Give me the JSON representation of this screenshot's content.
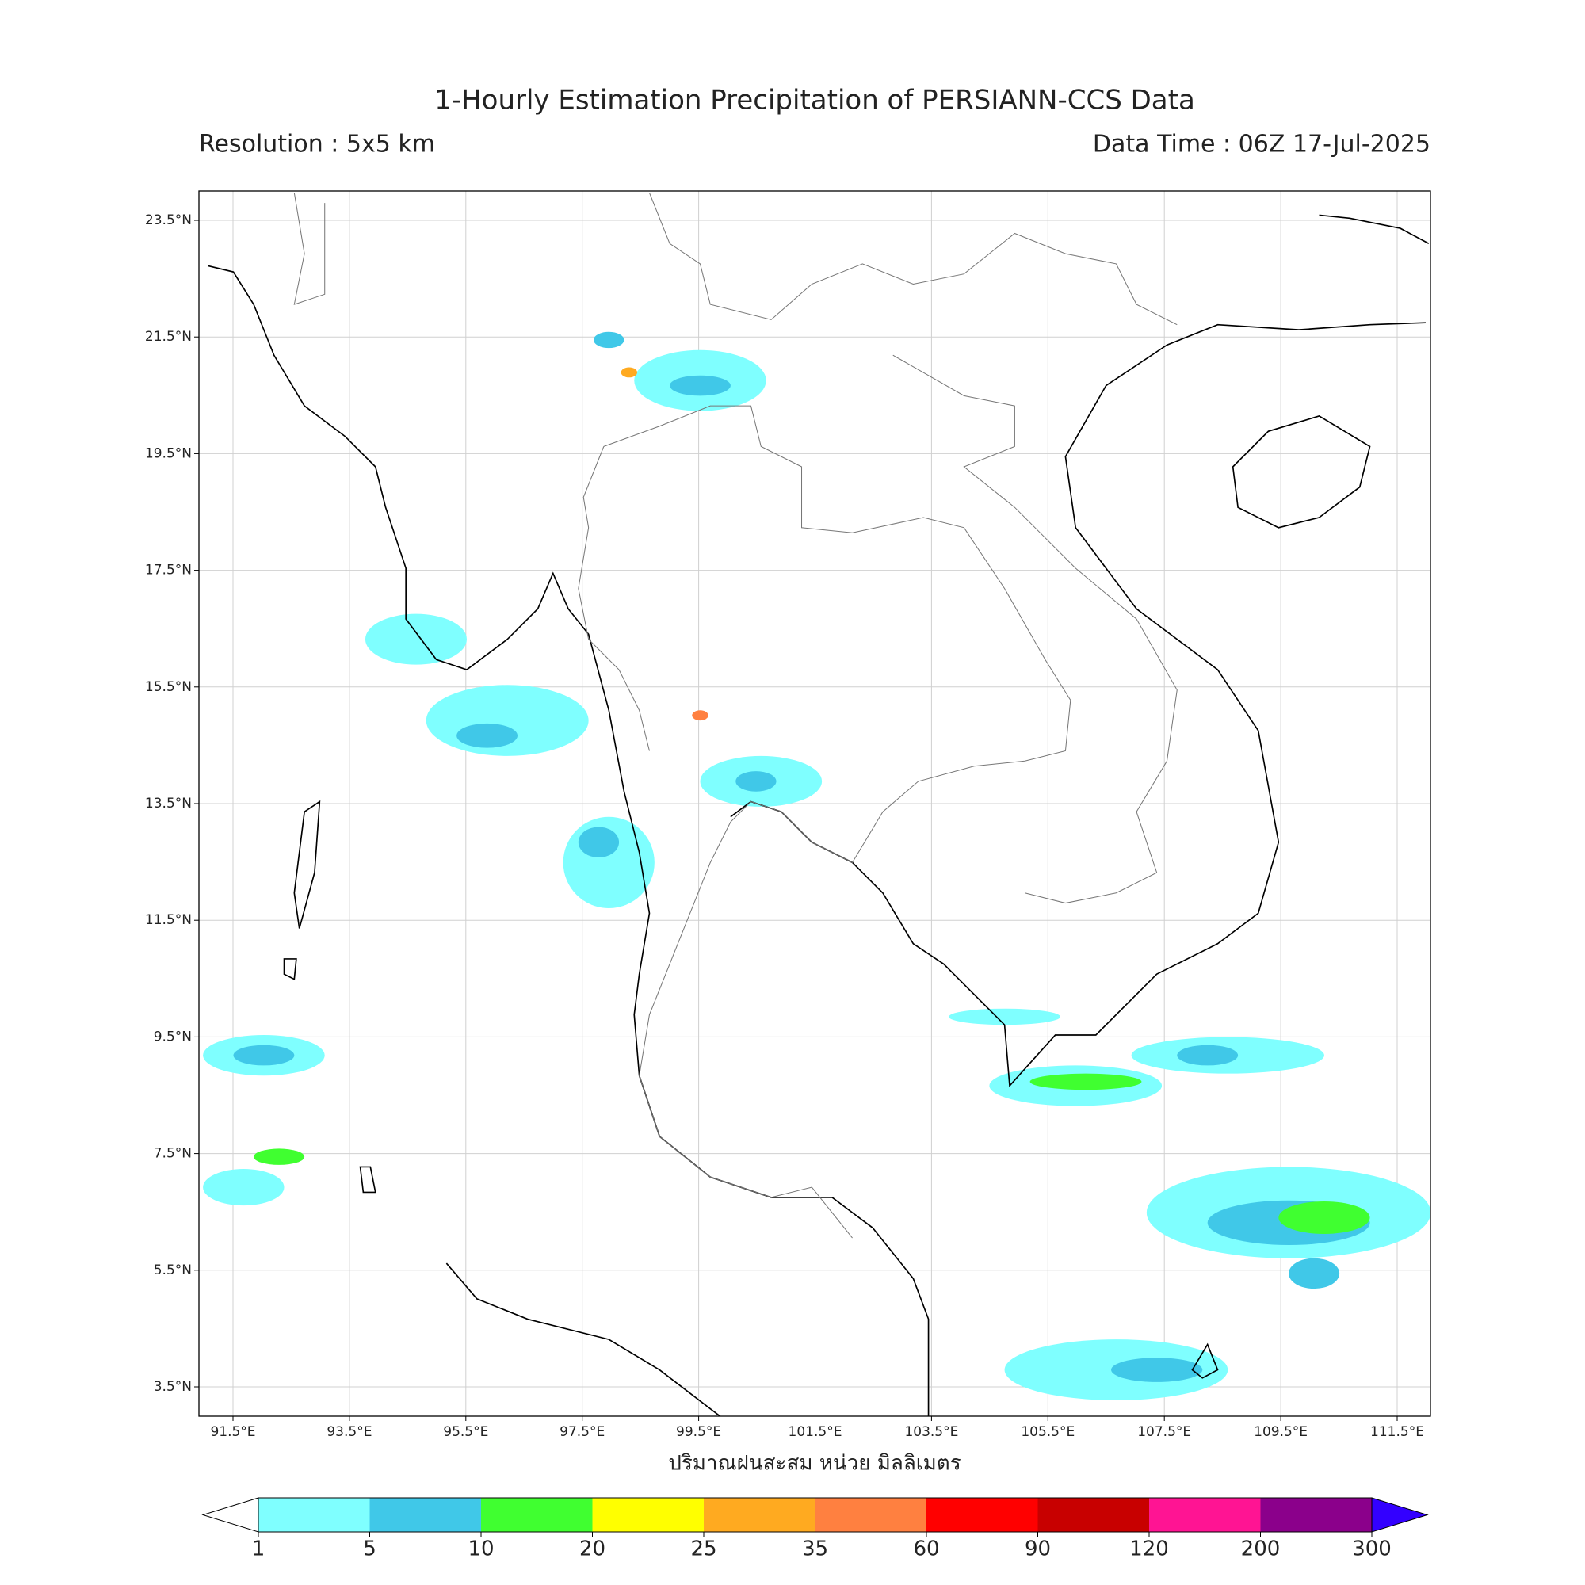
{
  "header": {
    "title": "1-Hourly Estimation Precipitation of PERSIANN-CCS Data",
    "resolution": "Resolution : 5x5 km",
    "data_time": "Data Time : 06Z 17-Jul-2025"
  },
  "map": {
    "lat_labels": [
      "23.5°N",
      "21.5°N",
      "19.5°N",
      "17.5°N",
      "15.5°N",
      "13.5°N",
      "11.5°N",
      "9.5°N",
      "7.5°N",
      "5.5°N",
      "3.5°N"
    ],
    "lon_labels": [
      "91.5°E",
      "93.5°E",
      "95.5°E",
      "97.5°E",
      "99.5°E",
      "101.5°E",
      "103.5°E",
      "105.5°E",
      "107.5°E",
      "109.5°E",
      "111.5°E"
    ],
    "axis_label": "ปริมาณฝนสะสม หน่วย มิลลิเมตร"
  },
  "colorbar": {
    "ticks": [
      1,
      5,
      10,
      20,
      25,
      35,
      60,
      90,
      120,
      200,
      300
    ],
    "colors": [
      "#7fffff",
      "#40c8e8",
      "#40ff30",
      "#ffff00",
      "#ffaa20",
      "#ff8040",
      "#ff0000",
      "#c80000",
      "#ff1493",
      "#8b008b"
    ],
    "under_color": "#ffffff",
    "over_color": "#3300ff"
  }
}
